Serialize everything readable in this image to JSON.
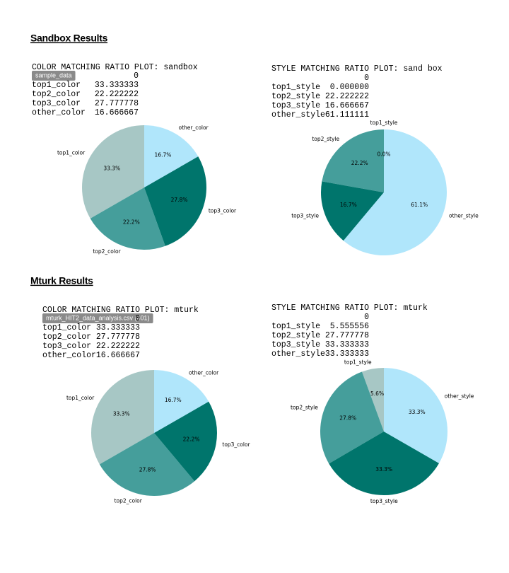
{
  "sections": [
    {
      "heading": "Sandbox Results"
    },
    {
      "heading": "Mturk Results"
    }
  ],
  "tables": [
    {
      "title": "COLOR MATCHING RATIO PLOT: sandbox",
      "badge": "sample_data",
      "column": "0",
      "rows": [
        [
          "top1_color",
          "33.333333"
        ],
        [
          "top2_color",
          "22.222222"
        ],
        [
          "top3_color",
          "27.777778"
        ],
        [
          "other_color",
          "16.666667"
        ]
      ]
    },
    {
      "title": "STYLE MATCHING RATIO PLOT: sand box",
      "column": "0",
      "rows": [
        [
          "top1_style",
          "0.000000"
        ],
        [
          "top2_style",
          "22.222222"
        ],
        [
          "top3_style",
          "16.666667"
        ],
        [
          "other_style",
          "61.111111"
        ]
      ]
    },
    {
      "title": "COLOR MATCHING RATIO PLOT: mturk",
      "badge": "mturk_HIT2_data_analysis.csv (401)",
      "column": "0",
      "rows": [
        [
          "top1_color",
          "33.333333"
        ],
        [
          "top2_color",
          "27.777778"
        ],
        [
          "top3_color",
          "22.222222"
        ],
        [
          "other_color",
          "16.666667"
        ]
      ]
    },
    {
      "title": "STYLE MATCHING RATIO PLOT: mturk",
      "column": "0",
      "rows": [
        [
          "top1_style",
          "5.555556"
        ],
        [
          "top2_style",
          "27.777778"
        ],
        [
          "top3_style",
          "33.333333"
        ],
        [
          "other_style",
          "33.333333"
        ]
      ]
    }
  ],
  "chart_data": [
    {
      "type": "pie",
      "categories": [
        "top1_color",
        "top2_color",
        "top3_color",
        "other_color"
      ],
      "values": [
        33.3,
        22.2,
        27.8,
        16.7
      ],
      "value_labels": [
        "33.3%",
        "22.2%",
        "27.8%",
        "16.7%"
      ],
      "colors": [
        "#a7c7c5",
        "#459e9b",
        "#00756c",
        "#b0e6fb"
      ]
    },
    {
      "type": "pie",
      "categories": [
        "top1_style",
        "top2_style",
        "top3_style",
        "other_style"
      ],
      "values": [
        0.0,
        22.2,
        16.7,
        61.1
      ],
      "value_labels": [
        "0.0%",
        "22.2%",
        "16.7%",
        "61.1%"
      ],
      "colors": [
        "#a7c7c5",
        "#459e9b",
        "#00756c",
        "#b0e6fb"
      ]
    },
    {
      "type": "pie",
      "categories": [
        "top1_color",
        "top2_color",
        "top3_color",
        "other_color"
      ],
      "values": [
        33.3,
        27.8,
        22.2,
        16.7
      ],
      "value_labels": [
        "33.3%",
        "27.8%",
        "22.2%",
        "16.7%"
      ],
      "colors": [
        "#a7c7c5",
        "#459e9b",
        "#00756c",
        "#b0e6fb"
      ]
    },
    {
      "type": "pie",
      "categories": [
        "top1_style",
        "top2_style",
        "top3_style",
        "other_style"
      ],
      "values": [
        5.6,
        27.8,
        33.3,
        33.3
      ],
      "value_labels": [
        "5.6%",
        "27.8%",
        "33.3%",
        "33.3%"
      ],
      "colors": [
        "#a7c7c5",
        "#459e9b",
        "#00756c",
        "#b0e6fb"
      ]
    }
  ]
}
